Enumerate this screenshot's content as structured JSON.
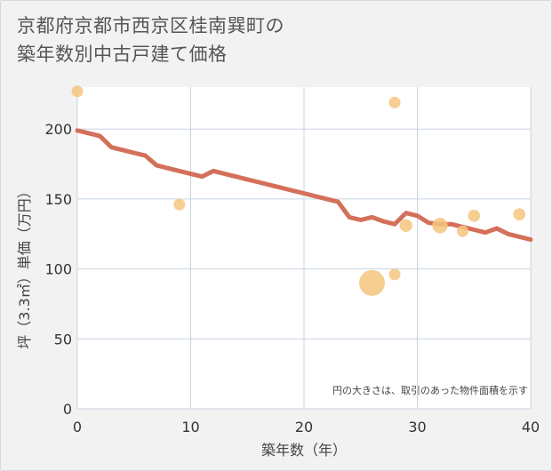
{
  "header": {
    "title_line1": "京都府京都市西京区桂南巽町の",
    "title_line2": "築年数別中古戸建て価格"
  },
  "chart_data": {
    "type": "scatter",
    "title": "京都府京都市西京区桂南巽町の築年数別中古戸建て価格",
    "xlabel": "築年数（年）",
    "ylabel": "坪（3.3㎡）単価（万円）",
    "xlim": [
      0,
      40
    ],
    "ylim": [
      0,
      230
    ],
    "x_ticks": [
      0,
      10,
      20,
      30,
      40
    ],
    "y_ticks": [
      0,
      50,
      100,
      150,
      200
    ],
    "grid": true,
    "note": "円の大きさは、取引のあった物件面積を示す",
    "colors": {
      "trend": "#d4705a",
      "bubble": "#f5c57e",
      "grid": "#c8d4e0",
      "plot_bg": "#ffffff"
    },
    "series": [
      {
        "type": "scatter",
        "points": [
          {
            "x": 0,
            "y": 227,
            "size": 1
          },
          {
            "x": 9,
            "y": 146,
            "size": 1
          },
          {
            "x": 26,
            "y": 90,
            "size": 5
          },
          {
            "x": 28,
            "y": 219,
            "size": 1
          },
          {
            "x": 28,
            "y": 96,
            "size": 1
          },
          {
            "x": 29,
            "y": 131,
            "size": 1.2
          },
          {
            "x": 32,
            "y": 131,
            "size": 1.8
          },
          {
            "x": 34,
            "y": 127,
            "size": 1
          },
          {
            "x": 35,
            "y": 138,
            "size": 1.1
          },
          {
            "x": 39,
            "y": 139,
            "size": 1.1
          }
        ]
      },
      {
        "type": "line",
        "x": [
          0,
          1,
          2,
          3,
          4,
          5,
          6,
          7,
          8,
          9,
          10,
          11,
          12,
          13,
          14,
          15,
          16,
          17,
          18,
          19,
          20,
          21,
          22,
          23,
          24,
          25,
          26,
          27,
          28,
          29,
          30,
          31,
          32,
          33,
          34,
          35,
          36,
          37,
          38,
          39,
          40
        ],
        "y": [
          199,
          197,
          195,
          187,
          185,
          183,
          181,
          174,
          172,
          170,
          168,
          166,
          170,
          168,
          166,
          164,
          162,
          160,
          158,
          156,
          154,
          152,
          150,
          148,
          137,
          135,
          137,
          134,
          132,
          140,
          138,
          133,
          132,
          132,
          130,
          128,
          126,
          129,
          125,
          123,
          121
        ]
      }
    ]
  }
}
